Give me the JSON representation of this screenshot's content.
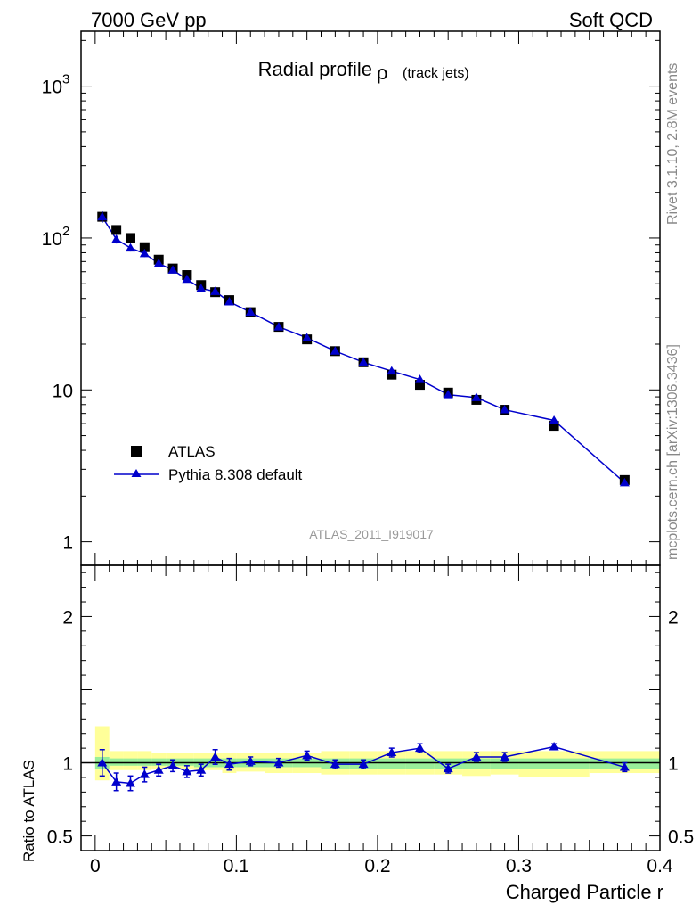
{
  "header": {
    "left": "7000 GeV pp",
    "right": "Soft QCD"
  },
  "side_labels": {
    "rivet": "Rivet 3.1.10,  2.8M events",
    "site": "mcplots.cern.ch [arXiv:1306.3436]"
  },
  "chart_data": [
    {
      "type": "scatter",
      "panel": "main",
      "title": "Radial profile",
      "title_symbol": "ρ",
      "title_suffix": "(track jets)",
      "watermark": "ATLAS_2011_I919017",
      "xlabel": "Charged Particle r",
      "xlim": [
        -0.01,
        0.4
      ],
      "ylog": true,
      "ylim": [
        0.7,
        2300
      ],
      "y_ticks": [
        {
          "v": 1,
          "base": "1",
          "exp": ""
        },
        {
          "v": 10,
          "base": "10",
          "exp": ""
        },
        {
          "v": 100,
          "base": "10",
          "exp": "2"
        },
        {
          "v": 1000,
          "base": "10",
          "exp": "3"
        }
      ],
      "legend_position": "lower-left",
      "legend": [
        {
          "label": "ATLAS",
          "marker": "square",
          "color": "#000000"
        },
        {
          "label": "Pythia 8.308 default",
          "marker": "triangle",
          "color": "#0000cc"
        }
      ],
      "series": [
        {
          "name": "ATLAS",
          "color": "#000000",
          "x": [
            0.005,
            0.015,
            0.025,
            0.035,
            0.045,
            0.055,
            0.065,
            0.075,
            0.085,
            0.095,
            0.11,
            0.13,
            0.15,
            0.17,
            0.19,
            0.21,
            0.23,
            0.25,
            0.27,
            0.29,
            0.325,
            0.375
          ],
          "y": [
            138,
            113,
            100,
            87,
            72,
            63,
            57,
            49,
            44,
            39,
            32.5,
            26,
            21.5,
            18,
            15.2,
            12.6,
            10.8,
            9.6,
            8.6,
            7.4,
            5.8,
            2.55
          ]
        },
        {
          "name": "Pythia 8.308 default",
          "color": "#0000cc",
          "x": [
            0.005,
            0.015,
            0.025,
            0.035,
            0.045,
            0.055,
            0.065,
            0.075,
            0.085,
            0.095,
            0.11,
            0.13,
            0.15,
            0.17,
            0.19,
            0.21,
            0.23,
            0.25,
            0.27,
            0.29,
            0.325,
            0.375
          ],
          "y": [
            138,
            98,
            86,
            79,
            68,
            61.5,
            53.5,
            46.5,
            44.5,
            38,
            32.5,
            26,
            22,
            18,
            15.2,
            13.3,
            11.7,
            9.3,
            8.9,
            7.4,
            6.3,
            2.45
          ],
          "yerr": [
            12,
            6,
            4.5,
            4,
            3,
            2.5,
            2.5,
            2,
            2,
            1.5,
            1,
            0.6,
            0.5,
            0.4,
            0.3,
            0.3,
            0.3,
            0.25,
            0.25,
            0.2,
            0.12,
            0.06
          ]
        }
      ]
    },
    {
      "type": "line",
      "panel": "ratio",
      "ylabel": "Ratio to ATLAS",
      "xlabel": "Charged Particle r",
      "xlim": [
        -0.01,
        0.4
      ],
      "ylim": [
        0.4,
        2.35
      ],
      "y_ticks": [
        0.5,
        1,
        2
      ],
      "y_tick_labels": [
        "0.5",
        "1",
        "2"
      ],
      "x_ticks": [
        0,
        0.1,
        0.2,
        0.3,
        0.4
      ],
      "x_tick_labels": [
        "0",
        "0.1",
        "0.2",
        "0.3",
        "0.4"
      ],
      "reference_line": 1,
      "bands": [
        {
          "x0": 0.0,
          "x1": 0.01,
          "stat": [
            0.96,
            1.04
          ],
          "total": [
            0.88,
            1.25
          ]
        },
        {
          "x0": 0.01,
          "x1": 0.02,
          "stat": [
            0.98,
            1.03
          ],
          "total": [
            0.95,
            1.08
          ]
        },
        {
          "x0": 0.02,
          "x1": 0.03,
          "stat": [
            0.98,
            1.03
          ],
          "total": [
            0.95,
            1.08
          ]
        },
        {
          "x0": 0.03,
          "x1": 0.04,
          "stat": [
            0.98,
            1.03
          ],
          "total": [
            0.95,
            1.08
          ]
        },
        {
          "x0": 0.04,
          "x1": 0.05,
          "stat": [
            0.98,
            1.03
          ],
          "total": [
            0.96,
            1.07
          ]
        },
        {
          "x0": 0.05,
          "x1": 0.06,
          "stat": [
            0.98,
            1.03
          ],
          "total": [
            0.96,
            1.07
          ]
        },
        {
          "x0": 0.06,
          "x1": 0.07,
          "stat": [
            0.98,
            1.03
          ],
          "total": [
            0.96,
            1.07
          ]
        },
        {
          "x0": 0.07,
          "x1": 0.08,
          "stat": [
            0.97,
            1.03
          ],
          "total": [
            0.95,
            1.07
          ]
        },
        {
          "x0": 0.08,
          "x1": 0.09,
          "stat": [
            0.97,
            1.03
          ],
          "total": [
            0.95,
            1.07
          ]
        },
        {
          "x0": 0.09,
          "x1": 0.1,
          "stat": [
            0.97,
            1.03
          ],
          "total": [
            0.93,
            1.07
          ]
        },
        {
          "x0": 0.1,
          "x1": 0.12,
          "stat": [
            0.97,
            1.03
          ],
          "total": [
            0.94,
            1.07
          ]
        },
        {
          "x0": 0.12,
          "x1": 0.14,
          "stat": [
            0.97,
            1.03
          ],
          "total": [
            0.93,
            1.07
          ]
        },
        {
          "x0": 0.14,
          "x1": 0.16,
          "stat": [
            0.97,
            1.03
          ],
          "total": [
            0.93,
            1.07
          ]
        },
        {
          "x0": 0.16,
          "x1": 0.18,
          "stat": [
            0.96,
            1.03
          ],
          "total": [
            0.92,
            1.08
          ]
        },
        {
          "x0": 0.18,
          "x1": 0.2,
          "stat": [
            0.96,
            1.03
          ],
          "total": [
            0.92,
            1.08
          ]
        },
        {
          "x0": 0.2,
          "x1": 0.22,
          "stat": [
            0.96,
            1.03
          ],
          "total": [
            0.92,
            1.08
          ]
        },
        {
          "x0": 0.22,
          "x1": 0.24,
          "stat": [
            0.96,
            1.03
          ],
          "total": [
            0.92,
            1.08
          ]
        },
        {
          "x0": 0.24,
          "x1": 0.26,
          "stat": [
            0.96,
            1.03
          ],
          "total": [
            0.92,
            1.08
          ]
        },
        {
          "x0": 0.26,
          "x1": 0.28,
          "stat": [
            0.96,
            1.03
          ],
          "total": [
            0.91,
            1.08
          ]
        },
        {
          "x0": 0.28,
          "x1": 0.3,
          "stat": [
            0.96,
            1.03
          ],
          "total": [
            0.92,
            1.08
          ]
        },
        {
          "x0": 0.3,
          "x1": 0.35,
          "stat": [
            0.96,
            1.03
          ],
          "total": [
            0.9,
            1.08
          ]
        },
        {
          "x0": 0.35,
          "x1": 0.4,
          "stat": [
            0.96,
            1.03
          ],
          "total": [
            0.93,
            1.08
          ]
        }
      ],
      "series": [
        {
          "name": "Pythia 8.308 default",
          "color": "#0000cc",
          "x": [
            0.005,
            0.015,
            0.025,
            0.035,
            0.045,
            0.055,
            0.065,
            0.075,
            0.085,
            0.095,
            0.11,
            0.13,
            0.15,
            0.17,
            0.19,
            0.21,
            0.23,
            0.25,
            0.27,
            0.29,
            0.325,
            0.375
          ],
          "y": [
            1.0,
            0.87,
            0.86,
            0.92,
            0.95,
            0.98,
            0.94,
            0.95,
            1.04,
            0.99,
            1.01,
            1.0,
            1.05,
            0.99,
            0.99,
            1.07,
            1.1,
            0.96,
            1.04,
            1.04,
            1.11,
            0.97
          ],
          "yerr": [
            0.09,
            0.06,
            0.05,
            0.05,
            0.04,
            0.04,
            0.04,
            0.04,
            0.05,
            0.04,
            0.03,
            0.03,
            0.03,
            0.03,
            0.03,
            0.03,
            0.03,
            0.03,
            0.03,
            0.03,
            0.02,
            0.03
          ]
        }
      ]
    }
  ]
}
